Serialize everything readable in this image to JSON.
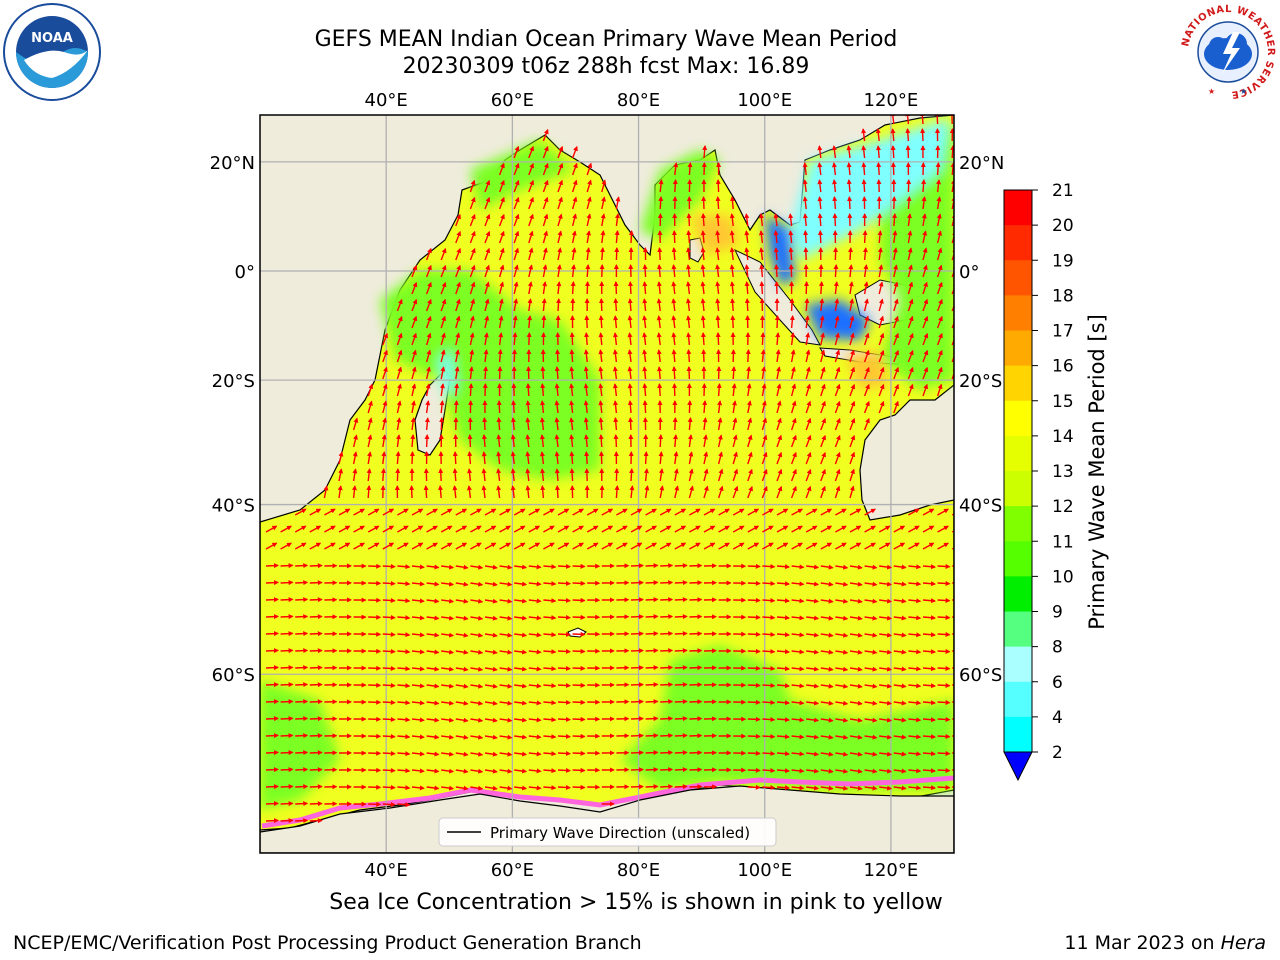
{
  "title": {
    "line1": "GEFS MEAN Indian Ocean Primary Wave Mean Period",
    "line2": "20230309 t06z 288h fcst   Max: 16.89"
  },
  "axes": {
    "lon_labels": [
      "40°E",
      "60°E",
      "80°E",
      "100°E",
      "120°E"
    ],
    "lon_values": [
      40,
      60,
      80,
      100,
      120
    ],
    "lat_labels": [
      "20°N",
      "0°",
      "20°S",
      "40°S",
      "60°S"
    ],
    "lat_values": [
      20,
      0,
      -20,
      -40,
      -60
    ],
    "lon_range": [
      20,
      130
    ],
    "lat_range": [
      -73,
      28
    ],
    "grid": true
  },
  "legend": {
    "line_label": "Primary Wave Direction (unscaled)",
    "placement": "bottom-center"
  },
  "colorbar": {
    "label": "Primary Wave Mean Period [s]",
    "ticks": [
      "21",
      "20",
      "19",
      "18",
      "17",
      "16",
      "15",
      "14",
      "13",
      "12",
      "11",
      "10",
      "9",
      "8",
      "6",
      "4",
      "2"
    ],
    "colors": [
      "#ff0000",
      "#ff2a00",
      "#ff5500",
      "#ff7f00",
      "#ffaa00",
      "#ffd400",
      "#ffff00",
      "#e6ff00",
      "#ccff00",
      "#80ff00",
      "#55ff00",
      "#00ee00",
      "#55ff80",
      "#aaffff",
      "#55ffff",
      "#00ffff",
      "#00aaff",
      "#0000ff"
    ],
    "extend": "min"
  },
  "colors": {
    "land": "#efecdc",
    "ocean_main": "#f0ff20",
    "ocean_green": "#7cff20",
    "ocean_cyan": "#80ffff",
    "ocean_blue": "#1e6fff",
    "ocean_orange": "#ffc830",
    "arrow": "#ff0000",
    "ice": "#ff66dd"
  },
  "note": "Sea Ice Concentration > 15% is shown in pink to yellow",
  "footer": {
    "left": "NCEP/EMC/Verification Post Processing Product Generation Branch",
    "right_prefix": "11 Mar 2023 on ",
    "right_machine": "Hera"
  },
  "logos": {
    "left": "noaa-logo",
    "right": "national-weather-service-logo",
    "nws_text": "NATIONAL WEATHER SERVICE"
  }
}
